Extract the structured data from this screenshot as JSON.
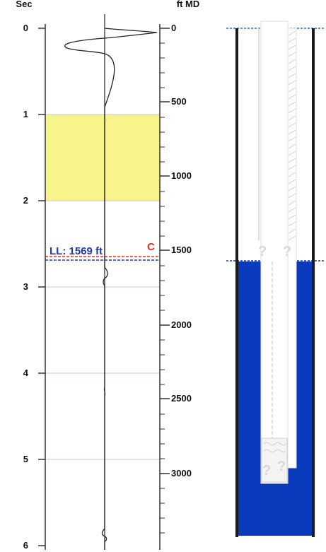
{
  "time_axis": {
    "unit_label": "Sec",
    "min": 0,
    "max": 6,
    "labels": [
      "0",
      "1",
      "2",
      "3",
      "4",
      "5",
      "6"
    ]
  },
  "depth_axis": {
    "unit_label": "ft MD",
    "min": 0,
    "max": 3500,
    "labels": [
      "0",
      "500",
      "1000",
      "1500",
      "2000",
      "2500",
      "3000"
    ]
  },
  "highlight_band": {
    "from_sec": 1,
    "to_sec": 2,
    "color": "#f7f58a"
  },
  "liquid_level": {
    "label": "LL: 1569 ft",
    "depth_ft": 1569,
    "color": "#1f3aa8"
  },
  "collar_marker": {
    "label": "C",
    "color": "#e0301e"
  },
  "wellbore": {
    "fluid_color": "#0b3bbd",
    "unknown_symbol": "?"
  },
  "colors": {
    "trace": "#222222",
    "frame": "#333333",
    "grid": "#d4c6c6"
  }
}
